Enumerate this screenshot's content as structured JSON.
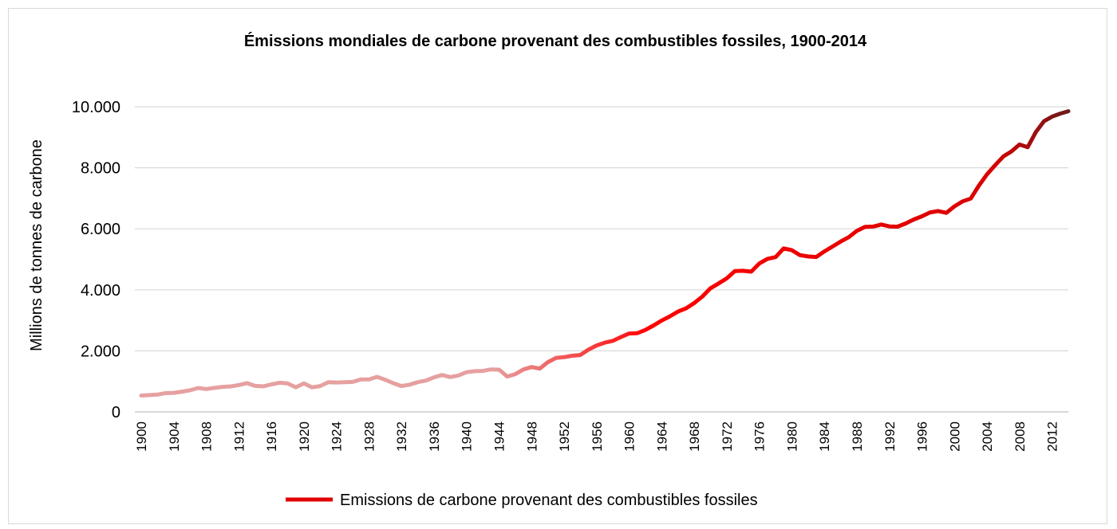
{
  "chart_data": {
    "type": "line",
    "title": "Émissions mondiales de carbone provenant des combustibles fossiles, 1900-2014",
    "ylabel": "Millions de tonnes de carbone",
    "xlabel": "",
    "ylim": [
      0,
      10000
    ],
    "yticks": [
      0,
      2000,
      4000,
      6000,
      8000,
      10000
    ],
    "ytick_labels": [
      "0",
      "2.000",
      "4.000",
      "6.000",
      "8.000",
      "10.000"
    ],
    "xticks": [
      "1900",
      "1904",
      "1908",
      "1912",
      "1916",
      "1920",
      "1924",
      "1928",
      "1932",
      "1936",
      "1940",
      "1944",
      "1948",
      "1952",
      "1956",
      "1960",
      "1964",
      "1968",
      "1972",
      "1976",
      "1980",
      "1984",
      "1988",
      "1992",
      "1996",
      "2000",
      "2004",
      "2008",
      "2012"
    ],
    "grid": true,
    "legend_position": "bottom",
    "colors": {
      "start": "#e6a0a0",
      "middle": "#ff0000",
      "end": "#6b1a1a",
      "legend": "#e00000"
    },
    "series": [
      {
        "name": "Emissions de carbone provenant des combustibles fossiles",
        "x": [
          1900,
          1901,
          1902,
          1903,
          1904,
          1905,
          1906,
          1907,
          1908,
          1909,
          1910,
          1911,
          1912,
          1913,
          1914,
          1915,
          1916,
          1917,
          1918,
          1919,
          1920,
          1921,
          1922,
          1923,
          1924,
          1925,
          1926,
          1927,
          1928,
          1929,
          1930,
          1931,
          1932,
          1933,
          1934,
          1935,
          1936,
          1937,
          1938,
          1939,
          1940,
          1941,
          1942,
          1943,
          1944,
          1945,
          1946,
          1947,
          1948,
          1949,
          1950,
          1951,
          1952,
          1953,
          1954,
          1955,
          1956,
          1957,
          1958,
          1959,
          1960,
          1961,
          1962,
          1963,
          1964,
          1965,
          1966,
          1967,
          1968,
          1969,
          1970,
          1971,
          1972,
          1973,
          1974,
          1975,
          1976,
          1977,
          1978,
          1979,
          1980,
          1981,
          1982,
          1983,
          1984,
          1985,
          1986,
          1987,
          1988,
          1989,
          1990,
          1991,
          1992,
          1993,
          1994,
          1995,
          1996,
          1997,
          1998,
          1999,
          2000,
          2001,
          2002,
          2003,
          2004,
          2005,
          2006,
          2007,
          2008,
          2009,
          2010,
          2011,
          2012,
          2013,
          2014
        ],
        "values": [
          534,
          552,
          566,
          617,
          624,
          663,
          707,
          784,
          750,
          785,
          819,
          836,
          879,
          943,
          850,
          838,
          901,
          955,
          936,
          806,
          932,
          803,
          845,
          970,
          963,
          975,
          983,
          1062,
          1065,
          1150,
          1053,
          940,
          847,
          893,
          973,
          1027,
          1130,
          1209,
          1142,
          1192,
          1299,
          1334,
          1342,
          1391,
          1383,
          1160,
          1238,
          1392,
          1469,
          1419,
          1630,
          1767,
          1795,
          1841,
          1865,
          2042,
          2177,
          2270,
          2330,
          2454,
          2569,
          2580,
          2686,
          2833,
          2995,
          3130,
          3288,
          3393,
          3566,
          3780,
          4053,
          4208,
          4376,
          4614,
          4623,
          4596,
          4864,
          5016,
          5074,
          5357,
          5301,
          5138,
          5094,
          5075,
          5258,
          5417,
          5583,
          5725,
          5936,
          6066,
          6074,
          6142,
          6078,
          6070,
          6174,
          6306,
          6410,
          6537,
          6582,
          6522,
          6735,
          6899,
          6993,
          7414,
          7785,
          8087,
          8371,
          8534,
          8762,
          8674,
          9167,
          9524,
          9675,
          9775,
          9855
        ]
      }
    ]
  }
}
